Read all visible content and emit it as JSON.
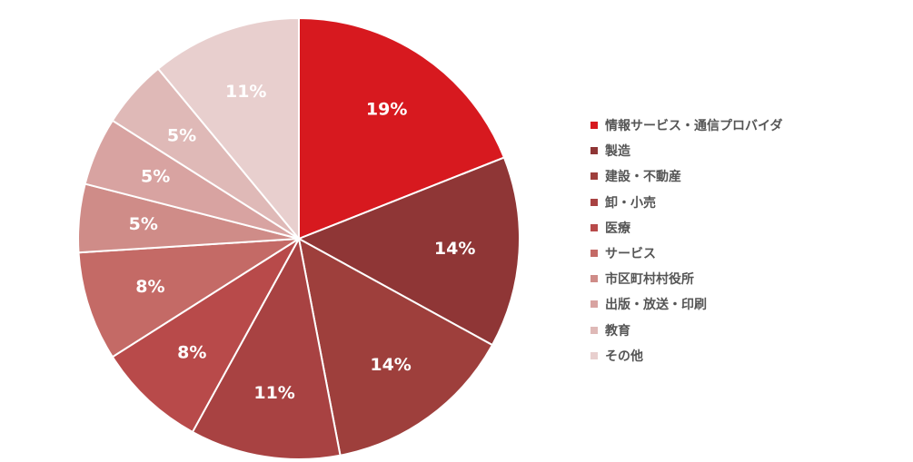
{
  "chart_data": {
    "type": "pie",
    "categories": [
      "情報サービス・通信プロバイダ",
      "製造",
      "建設・不動産",
      "卸・小売",
      "医療",
      "サービス",
      "市区町村村役所",
      "出版・放送・印刷",
      "教育",
      "その他"
    ],
    "values": [
      19,
      14,
      14,
      11,
      8,
      8,
      5,
      5,
      5,
      11
    ],
    "labels": [
      "19%",
      "14%",
      "14%",
      "11%",
      "8%",
      "8%",
      "5%",
      "5%",
      "5%",
      "11%"
    ],
    "colors": [
      "#d7191f",
      "#8f3636",
      "#9e3f3c",
      "#a84242",
      "#b84a4a",
      "#c46a66",
      "#cf8c88",
      "#d8a3a1",
      "#dfb9b7",
      "#e8cfce"
    ],
    "legend_position": "right"
  }
}
